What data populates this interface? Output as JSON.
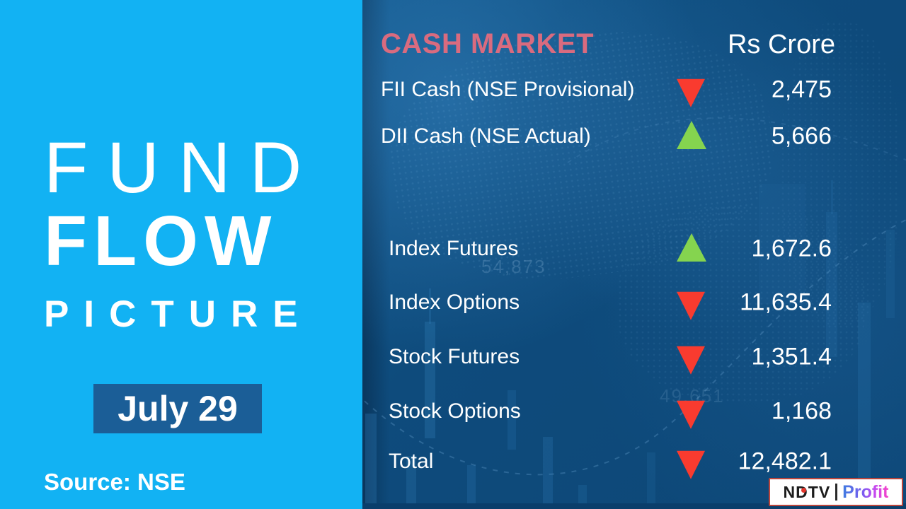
{
  "left_panel": {
    "title_line1": "FUND",
    "title_line2": "FLOW",
    "title_line3": "PICTURE",
    "date_label": "July 29",
    "source": "Source: NSE",
    "bg_color": "#12b2f3",
    "date_box_color": "#1b5e97"
  },
  "table": {
    "header": {
      "title": "CASH MARKET",
      "unit": "Rs Crore",
      "title_color": "#d96b7f"
    },
    "cash_rows": [
      {
        "label": "FII Cash (NSE Provisional)",
        "direction": "down",
        "value": "2,475"
      },
      {
        "label": "DII Cash (NSE Actual)",
        "direction": "up",
        "value": "5,666"
      }
    ],
    "derivative_rows": [
      {
        "label": "Index Futures",
        "direction": "up",
        "value": "1,672.6"
      },
      {
        "label": "Index Options",
        "direction": "down",
        "value": "11,635.4"
      },
      {
        "label": "Stock Futures",
        "direction": "down",
        "value": "1,351.4"
      },
      {
        "label": "Stock Options",
        "direction": "down",
        "value": "1,168"
      },
      {
        "label": "Total",
        "direction": "down",
        "value": "12,482.1"
      }
    ],
    "up_color": "#85d44f",
    "down_color": "#f93b2f"
  },
  "background_numbers": {
    "n1": "54,873",
    "n2": "49,651"
  },
  "logo": {
    "brand": "NDTV",
    "product": "Profit"
  },
  "chart_data": {
    "type": "table",
    "title": "CASH MARKET",
    "unit": "Rs Crore",
    "date": "July 29",
    "source": "NSE",
    "columns": [
      "Segment",
      "Direction",
      "Value (Rs Crore)"
    ],
    "rows": [
      {
        "label": "FII Cash (NSE Provisional)",
        "direction": "down",
        "value": 2475
      },
      {
        "label": "DII Cash (NSE Actual)",
        "direction": "up",
        "value": 5666
      },
      {
        "label": "Index Futures",
        "direction": "up",
        "value": 1672.6
      },
      {
        "label": "Index Options",
        "direction": "down",
        "value": 11635.4
      },
      {
        "label": "Stock Futures",
        "direction": "down",
        "value": 1351.4
      },
      {
        "label": "Stock Options",
        "direction": "down",
        "value": 1168
      },
      {
        "label": "Total",
        "direction": "down",
        "value": 12482.1
      }
    ]
  }
}
